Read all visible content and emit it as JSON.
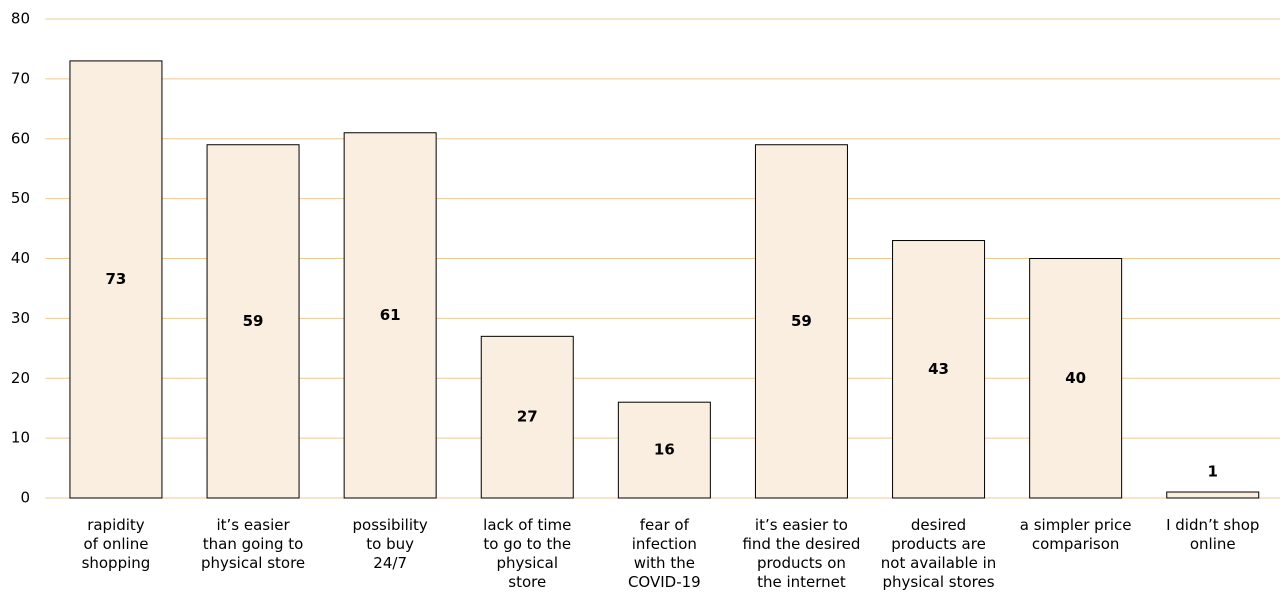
{
  "chart_data": {
    "type": "bar",
    "categories": [
      "rapidity\nof online\nshopping",
      "it’s easier\nthan going to\nphysical store",
      "possibility\nto buy\n24/7",
      "lack of time\nto go to the\nphysical\nstore",
      "fear of\ninfection\nwith the\nCOVID-19",
      "it’s easier  to\nfind the desired\nproducts on\nthe internet",
      "desired\nproducts are\nnot available in\nphysical stores",
      "a simpler price\ncomparison",
      "I didn’t shop\nonline"
    ],
    "values": [
      73,
      59,
      61,
      27,
      16,
      59,
      43,
      40,
      1
    ],
    "color": "#faeee0",
    "edge_color": "#000000",
    "grid_color": "#f0c890",
    "ylim": [
      0,
      80
    ],
    "yticks": [
      0,
      10,
      20,
      30,
      40,
      50,
      60,
      70,
      80
    ],
    "grid": true
  }
}
